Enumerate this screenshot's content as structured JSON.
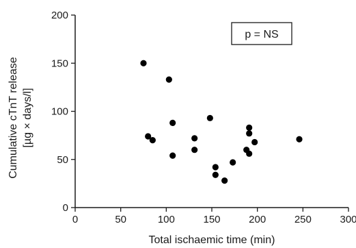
{
  "chart_data": {
    "type": "scatter",
    "title": "",
    "xlabel": "Total ischaemic time (min)",
    "ylabel_lines": [
      "Cumulative cTnT release",
      "[µg × days/l]"
    ],
    "xlim": [
      0,
      300
    ],
    "ylim": [
      0,
      200
    ],
    "x_ticks": [
      0,
      50,
      100,
      150,
      200,
      250,
      300
    ],
    "x_tick_labels": [
      "0",
      "50",
      "100",
      "150",
      "200",
      "250",
      "300"
    ],
    "y_ticks": [
      0,
      50,
      100,
      150,
      200
    ],
    "y_tick_labels": [
      "0",
      "50",
      "100",
      "150",
      "200"
    ],
    "grid": false,
    "legend": "none",
    "annotation": "p = NS",
    "point_color": "#000000",
    "points": [
      {
        "x": 75,
        "y": 150
      },
      {
        "x": 103,
        "y": 133
      },
      {
        "x": 80,
        "y": 74
      },
      {
        "x": 85,
        "y": 70
      },
      {
        "x": 107,
        "y": 88
      },
      {
        "x": 107,
        "y": 54
      },
      {
        "x": 131,
        "y": 72
      },
      {
        "x": 131,
        "y": 60
      },
      {
        "x": 148,
        "y": 93
      },
      {
        "x": 154,
        "y": 42
      },
      {
        "x": 154,
        "y": 34
      },
      {
        "x": 164,
        "y": 28
      },
      {
        "x": 173,
        "y": 47
      },
      {
        "x": 188,
        "y": 60
      },
      {
        "x": 191,
        "y": 83
      },
      {
        "x": 191,
        "y": 77
      },
      {
        "x": 191,
        "y": 56
      },
      {
        "x": 197,
        "y": 68
      },
      {
        "x": 246,
        "y": 71
      }
    ]
  }
}
